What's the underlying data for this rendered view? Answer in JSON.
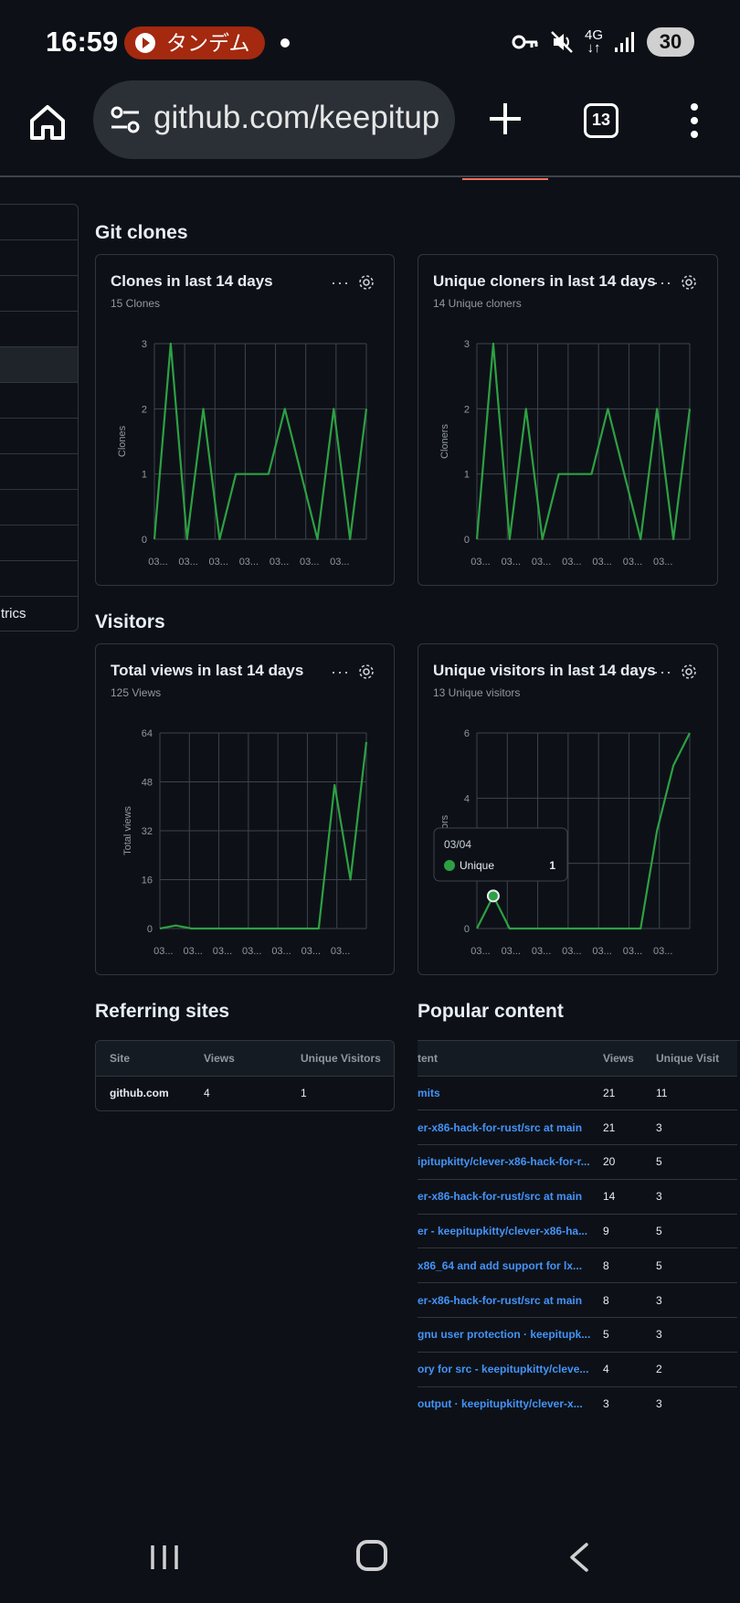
{
  "status": {
    "time": "16:59",
    "pill_label": "タンデム",
    "net_top": "4G",
    "net_bottom": "↓↑",
    "battery": "30"
  },
  "browser": {
    "url": "github.com/keepitup",
    "tab_count": "13"
  },
  "sidebar": {
    "items": [
      "",
      "",
      "",
      "",
      "",
      "",
      "",
      "",
      "",
      "",
      "",
      "trics"
    ],
    "active_index": 4
  },
  "sections": {
    "git_clones": "Git clones",
    "visitors": "Visitors",
    "referring_sites": "Referring sites",
    "popular_content": "Popular content"
  },
  "charts": {
    "clones": {
      "title": "Clones in last 14 days",
      "subtitle": "15 Clones"
    },
    "cloners": {
      "title": "Unique cloners in last 14 days",
      "subtitle": "14 Unique cloners"
    },
    "views": {
      "title": "Total views in last 14 days",
      "subtitle": "125 Views"
    },
    "visitors": {
      "title": "Unique visitors in last 14 days",
      "subtitle": "13 Unique visitors"
    }
  },
  "tooltip": {
    "date": "03/04",
    "label": "Unique",
    "value": "1"
  },
  "chart_data": [
    {
      "type": "line",
      "title": "Clones in last 14 days",
      "ylabel": "Clones",
      "ylim": [
        0,
        3
      ],
      "yticks": [
        "0",
        "1",
        "2",
        "3"
      ],
      "xticks": [
        "03...",
        "03...",
        "03...",
        "03...",
        "03...",
        "03...",
        "03..."
      ],
      "values": [
        0,
        3,
        0,
        2,
        0,
        1,
        1,
        1,
        2,
        1,
        0,
        2,
        0,
        2
      ],
      "color": "#2ea043"
    },
    {
      "type": "line",
      "title": "Unique cloners in last 14 days",
      "ylabel": "Cloners",
      "ylim": [
        0,
        3
      ],
      "yticks": [
        "0",
        "1",
        "2",
        "3"
      ],
      "xticks": [
        "03...",
        "03...",
        "03...",
        "03...",
        "03...",
        "03...",
        "03..."
      ],
      "values": [
        0,
        3,
        0,
        2,
        0,
        1,
        1,
        1,
        2,
        1,
        0,
        2,
        0,
        2
      ],
      "color": "#2ea043"
    },
    {
      "type": "line",
      "title": "Total views in last 14 days",
      "ylabel": "Total views",
      "ylim": [
        0,
        64
      ],
      "yticks": [
        "0",
        "16",
        "32",
        "48",
        "64"
      ],
      "xticks": [
        "03...",
        "03...",
        "03...",
        "03...",
        "03...",
        "03...",
        "03..."
      ],
      "values": [
        0,
        1,
        0,
        0,
        0,
        0,
        0,
        0,
        0,
        0,
        0,
        47,
        16,
        61
      ],
      "color": "#2ea043"
    },
    {
      "type": "line",
      "title": "Unique visitors in last 14 days",
      "ylabel": "visitors",
      "ylim": [
        0,
        6
      ],
      "yticks": [
        "0",
        "2",
        "4",
        "6"
      ],
      "xticks": [
        "03...",
        "03...",
        "03...",
        "03...",
        "03...",
        "03...",
        "03..."
      ],
      "values": [
        0,
        1,
        0,
        0,
        0,
        0,
        0,
        0,
        0,
        0,
        0,
        3,
        5,
        6
      ],
      "color": "#2ea043"
    }
  ],
  "referring": {
    "headers": [
      "Site",
      "Views",
      "Unique Visitors"
    ],
    "rows": [
      [
        "github.com",
        "4",
        "1"
      ]
    ]
  },
  "popular": {
    "headers": [
      "tent",
      "Views",
      "Unique Visit"
    ],
    "rows": [
      [
        "mits",
        "21",
        "11"
      ],
      [
        "er-x86-hack-for-rust/src at main",
        "21",
        "3"
      ],
      [
        "ipitupkitty/clever-x86-hack-for-r...",
        "20",
        "5"
      ],
      [
        "er-x86-hack-for-rust/src at main",
        "14",
        "3"
      ],
      [
        "er - keepitupkitty/clever-x86-ha...",
        "9",
        "5"
      ],
      [
        "x86_64 and add support for lx...",
        "8",
        "5"
      ],
      [
        "er-x86-hack-for-rust/src at main",
        "8",
        "3"
      ],
      [
        "gnu user protection · keepitupk...",
        "5",
        "3"
      ],
      [
        "ory for src - keepitupkitty/cleve...",
        "4",
        "2"
      ],
      [
        "output · keepitupkitty/clever-x...",
        "3",
        "3"
      ]
    ]
  }
}
